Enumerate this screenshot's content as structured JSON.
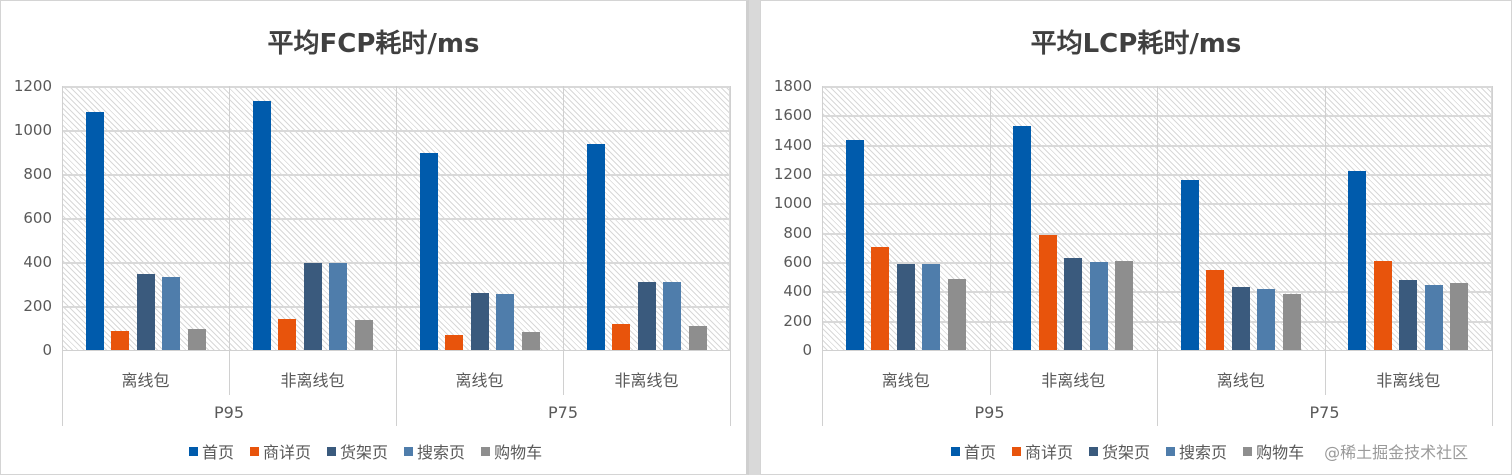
{
  "chart_data": [
    {
      "type": "bar",
      "title": "平均FCP耗时/ms",
      "xlabel": "",
      "ylabel": "",
      "ylim": [
        0,
        1200
      ],
      "yticks": [
        0,
        200,
        400,
        600,
        800,
        1000,
        1200
      ],
      "grid": true,
      "legend_position": "bottom",
      "groups": [
        {
          "label": "P95",
          "categories": [
            "离线包",
            "非离线包"
          ]
        },
        {
          "label": "P75",
          "categories": [
            "离线包",
            "非离线包"
          ]
        }
      ],
      "categories": [
        "P95 离线包",
        "P95 非离线包",
        "P75 离线包",
        "P75 非离线包"
      ],
      "series": [
        {
          "name": "首页",
          "color": "#005BAC",
          "values": [
            1080,
            1130,
            895,
            935
          ]
        },
        {
          "name": "商详页",
          "color": "#E8540C",
          "values": [
            85,
            140,
            70,
            120
          ]
        },
        {
          "name": "货架页",
          "color": "#3A5A7D",
          "values": [
            345,
            395,
            258,
            308
          ]
        },
        {
          "name": "搜索页",
          "color": "#4F7DAB",
          "values": [
            330,
            395,
            253,
            308
          ]
        },
        {
          "name": "购物车",
          "color": "#8E8E8E",
          "values": [
            95,
            135,
            80,
            110
          ]
        }
      ]
    },
    {
      "type": "bar",
      "title": "平均LCP耗时/ms",
      "xlabel": "",
      "ylabel": "",
      "ylim": [
        0,
        1800
      ],
      "yticks": [
        0,
        200,
        400,
        600,
        800,
        1000,
        1200,
        1400,
        1600,
        1800
      ],
      "grid": true,
      "legend_position": "bottom",
      "groups": [
        {
          "label": "P95",
          "categories": [
            "离线包",
            "非离线包"
          ]
        },
        {
          "label": "P75",
          "categories": [
            "离线包",
            "非离线包"
          ]
        }
      ],
      "categories": [
        "P95 离线包",
        "P95 非离线包",
        "P75 离线包",
        "P75 非离线包"
      ],
      "series": [
        {
          "name": "首页",
          "color": "#005BAC",
          "values": [
            1435,
            1530,
            1160,
            1220
          ]
        },
        {
          "name": "商详页",
          "color": "#E8540C",
          "values": [
            700,
            785,
            545,
            605
          ]
        },
        {
          "name": "货架页",
          "color": "#3A5A7D",
          "values": [
            585,
            630,
            430,
            475
          ]
        },
        {
          "name": "搜索页",
          "color": "#4F7DAB",
          "values": [
            585,
            600,
            415,
            445
          ]
        },
        {
          "name": "购物车",
          "color": "#8E8E8E",
          "values": [
            485,
            610,
            380,
            460
          ]
        }
      ]
    }
  ],
  "watermark": "@稀土掘金技术社区"
}
